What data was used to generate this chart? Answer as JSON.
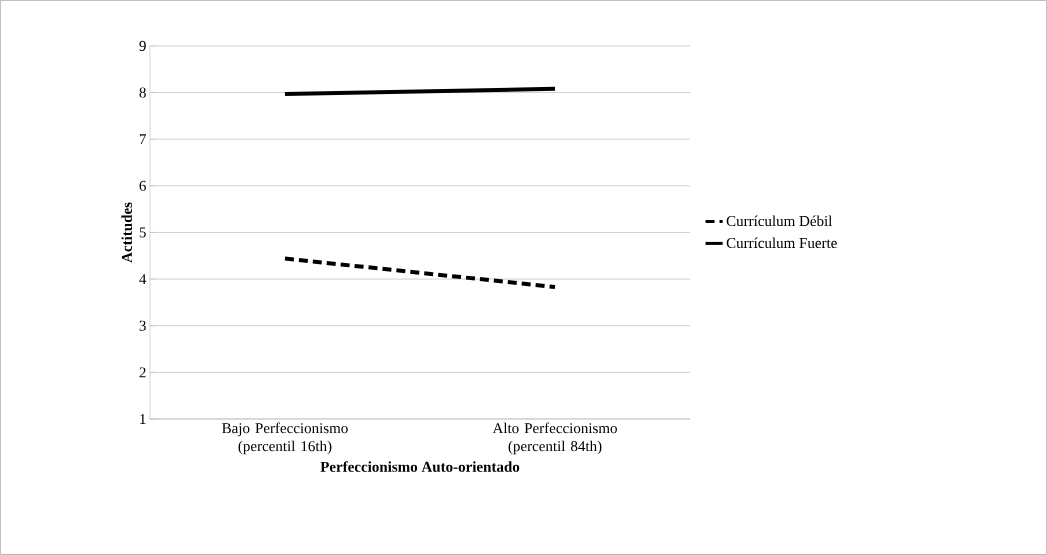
{
  "chart_data": {
    "type": "line",
    "xlabel": "Perfeccionismo Auto-orientado",
    "ylabel": "Actitudes",
    "categories": [
      "Bajo Perfeccionismo (percentil 16th)",
      "Alto Perfeccionismo (percentil 84th)"
    ],
    "series": [
      {
        "name": "Currículum Débil",
        "color": "#000000",
        "line_style": "dashed",
        "values": [
          4.44,
          3.83
        ]
      },
      {
        "name": "Currículum Fuerte",
        "color": "#000000",
        "line_style": "solid",
        "values": [
          7.97,
          8.08
        ]
      }
    ],
    "ylim": [
      1,
      9
    ],
    "yticks": [
      1,
      2,
      3,
      4,
      5,
      6,
      7,
      8,
      9
    ],
    "grid": "y",
    "legend": "right",
    "marker": "none"
  }
}
